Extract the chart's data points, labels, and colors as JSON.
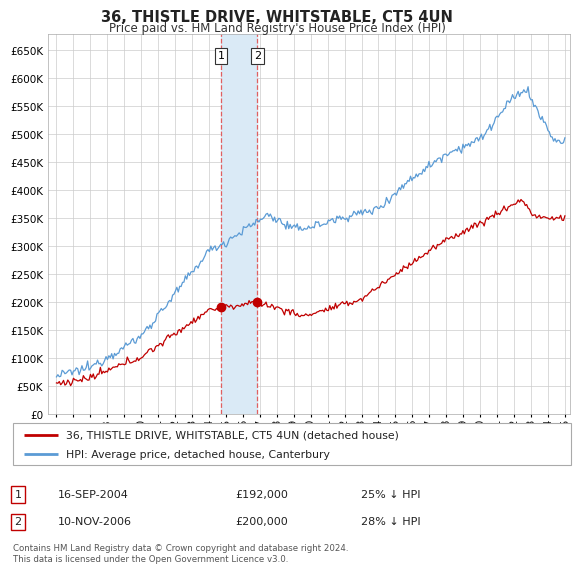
{
  "title": "36, THISTLE DRIVE, WHITSTABLE, CT5 4UN",
  "subtitle": "Price paid vs. HM Land Registry's House Price Index (HPI)",
  "legend_line1": "36, THISTLE DRIVE, WHITSTABLE, CT5 4UN (detached house)",
  "legend_line2": "HPI: Average price, detached house, Canterbury",
  "transaction1_label": "1",
  "transaction1_date": "16-SEP-2004",
  "transaction1_price": "£192,000",
  "transaction1_hpi": "25% ↓ HPI",
  "transaction2_label": "2",
  "transaction2_date": "10-NOV-2006",
  "transaction2_price": "£200,000",
  "transaction2_hpi": "28% ↓ HPI",
  "footnote": "Contains HM Land Registry data © Crown copyright and database right 2024.\nThis data is licensed under the Open Government Licence v3.0.",
  "hpi_color": "#5b9bd5",
  "price_color": "#c00000",
  "shaded_color": "#daeaf6",
  "dashed_color": "#e06060",
  "grid_color": "#cccccc",
  "background_color": "#ffffff",
  "ylim_min": 0,
  "ylim_max": 680000,
  "yticks": [
    0,
    50000,
    100000,
    150000,
    200000,
    250000,
    300000,
    350000,
    400000,
    450000,
    500000,
    550000,
    600000,
    650000
  ],
  "sale1_year": 2004.71,
  "sale2_year": 2006.85,
  "sale1_price": 192000,
  "sale2_price": 200000
}
